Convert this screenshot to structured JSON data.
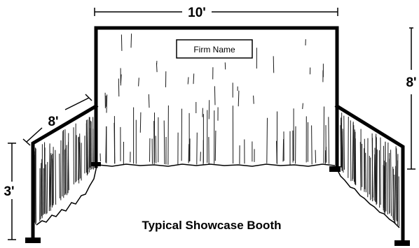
{
  "diagram": {
    "caption": "Typical Showcase Booth",
    "sign_label": "Firm Name",
    "dimensions": {
      "width": "10'",
      "back_height": "8'",
      "side_depth": "8'",
      "side_height": "3'"
    },
    "colors": {
      "frame": "#000000",
      "drape": "#1a1a1a",
      "background": "#ffffff"
    }
  }
}
